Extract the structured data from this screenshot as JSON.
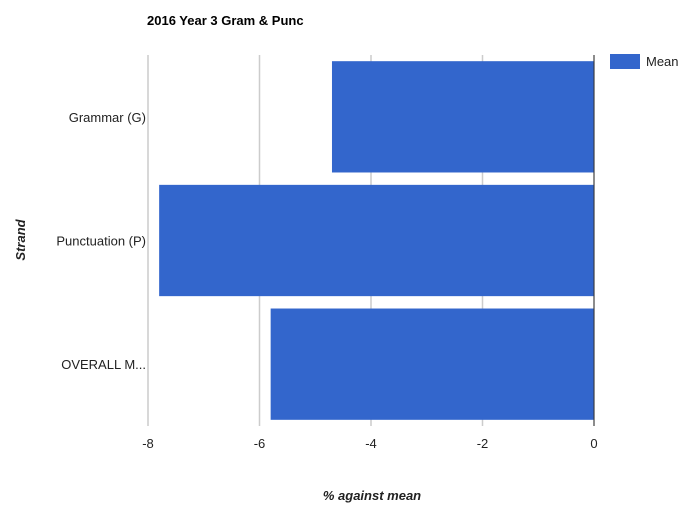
{
  "chart_data": {
    "type": "bar",
    "orientation": "horizontal",
    "title": "2016 Year 3 Gram & Punc",
    "xlabel": "% against mean",
    "ylabel": "Strand",
    "categories": [
      "Grammar (G)",
      "Punctuation (P)",
      "OVERALL M..."
    ],
    "series": [
      {
        "name": "Mean",
        "values": [
          -4.7,
          -7.8,
          -5.8
        ],
        "color": "#3366cc"
      }
    ],
    "xlim": [
      -8,
      0
    ],
    "xticks": [
      -8,
      -6,
      -4,
      -2,
      0
    ],
    "grid": true,
    "legend": "top-right"
  }
}
